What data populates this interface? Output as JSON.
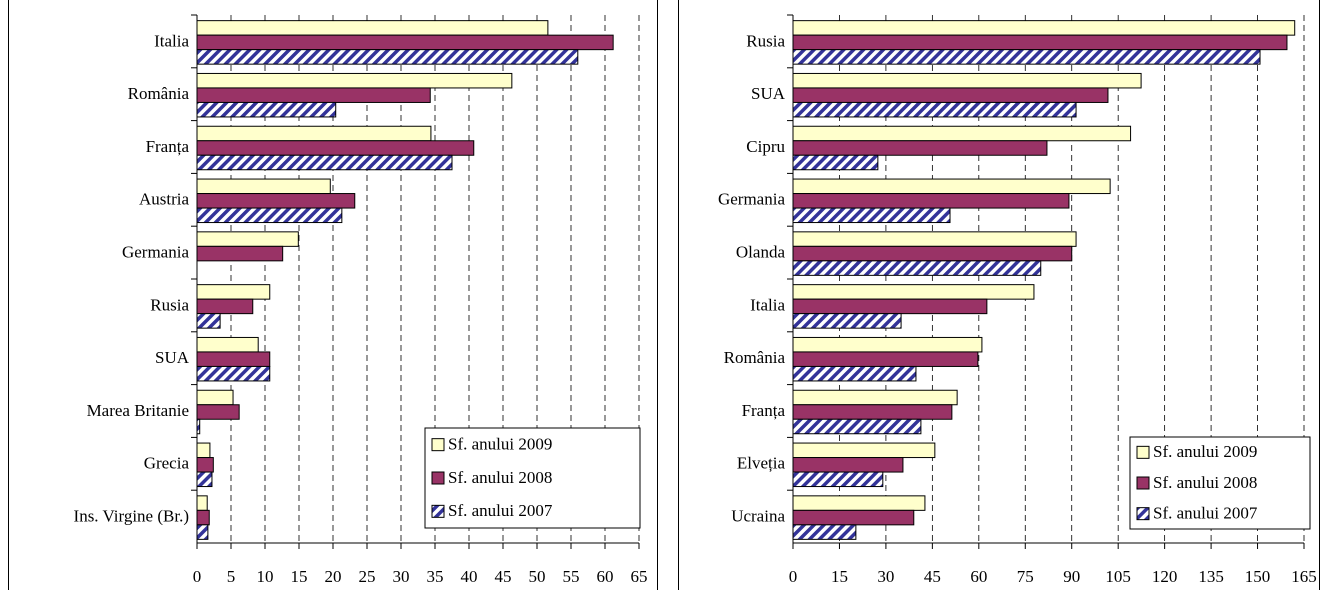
{
  "chart_data": [
    {
      "type": "bar",
      "orientation": "horizontal",
      "grid": true,
      "legend": "lower right",
      "categories": [
        "Italia",
        "România",
        "Franța",
        "Austria",
        "Germania",
        "Rusia",
        "SUA",
        "Marea Britanie",
        "Grecia",
        "Ins. Virgine (Br.)"
      ],
      "series": [
        {
          "name": "Sf. anului 2009",
          "color": "#ffffcc",
          "values": [
            51.6,
            46.3,
            34.4,
            19.6,
            14.9,
            10.7,
            9.0,
            5.3,
            1.9,
            1.5
          ]
        },
        {
          "name": "Sf. anului 2008",
          "color": "#993366",
          "values": [
            61.2,
            34.3,
            40.7,
            23.2,
            12.6,
            8.2,
            10.7,
            6.2,
            2.4,
            1.8
          ]
        },
        {
          "name": "Sf. anului 2007",
          "color": "#333399",
          "hatch": true,
          "values": [
            56.0,
            20.4,
            37.5,
            21.3,
            0,
            3.4,
            10.7,
            0.4,
            2.2,
            1.6
          ]
        }
      ],
      "xlim": [
        0,
        65
      ],
      "xticks": [
        0,
        5,
        10,
        15,
        20,
        25,
        30,
        35,
        40,
        45,
        50,
        55,
        60,
        65
      ]
    },
    {
      "type": "bar",
      "orientation": "horizontal",
      "grid": true,
      "legend": "lower right",
      "categories": [
        "Rusia",
        "SUA",
        "Cipru",
        "Germania",
        "Olanda",
        "Italia",
        "România",
        "Franța",
        "Elveția",
        "Ucraina"
      ],
      "series": [
        {
          "name": "Sf. anului 2009",
          "color": "#ffffcc",
          "values": [
            162,
            112.4,
            109,
            102.4,
            91.4,
            77.8,
            61,
            53,
            45.8,
            42.6
          ]
        },
        {
          "name": "Sf. anului 2008",
          "color": "#993366",
          "values": [
            159.5,
            101.7,
            82,
            89.1,
            90,
            62.6,
            59.7,
            51.3,
            35.5,
            39
          ]
        },
        {
          "name": "Sf. anului 2007",
          "color": "#333399",
          "hatch": true,
          "values": [
            150.8,
            91.4,
            27.4,
            50.7,
            80,
            34.9,
            39.7,
            41.3,
            29,
            20.3
          ]
        }
      ],
      "xlim": [
        0,
        165
      ],
      "xticks": [
        0,
        15,
        30,
        45,
        60,
        75,
        90,
        105,
        120,
        135,
        150,
        165
      ]
    }
  ]
}
